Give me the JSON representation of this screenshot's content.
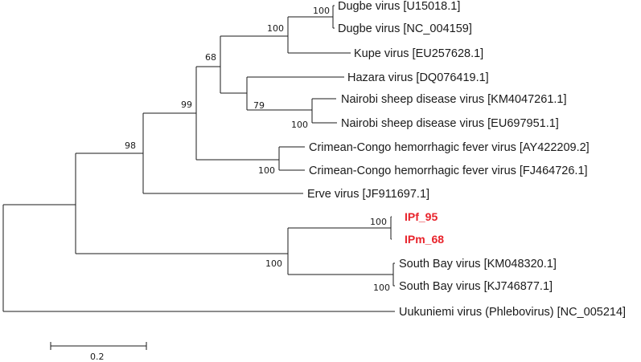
{
  "tree": {
    "taxa": [
      {
        "id": "dugbe1",
        "label": "Dugbe virus [U15018.1]",
        "highlight": false
      },
      {
        "id": "dugbe2",
        "label": "Dugbe virus [NC_004159]",
        "highlight": false
      },
      {
        "id": "kupe",
        "label": "Kupe virus [EU257628.1]",
        "highlight": false
      },
      {
        "id": "hazara",
        "label": "Hazara virus [DQ076419.1]",
        "highlight": false
      },
      {
        "id": "nairobi1",
        "label": "Nairobi sheep disease virus  [KM4047261.1]",
        "highlight": false
      },
      {
        "id": "nairobi2",
        "label": "Nairobi sheep disease virus  [EU697951.1]",
        "highlight": false
      },
      {
        "id": "cchf1",
        "label": "Crimean-Congo hemorrhagic fever virus [AY422209.2]",
        "highlight": false
      },
      {
        "id": "cchf2",
        "label": "Crimean-Congo hemorrhagic fever virus [FJ464726.1]",
        "highlight": false
      },
      {
        "id": "erve",
        "label": "Erve virus [JF911697.1]",
        "highlight": false
      },
      {
        "id": "ipf95",
        "label": "IPf_95",
        "highlight": true
      },
      {
        "id": "ipm68",
        "label": "IPm_68",
        "highlight": true
      },
      {
        "id": "southbay1",
        "label": "South Bay virus [KM048320.1]",
        "highlight": false
      },
      {
        "id": "southbay2",
        "label": "South Bay virus [KJ746877.1]",
        "highlight": false
      },
      {
        "id": "uukuniemi",
        "label": "Uukuniemi virus (Phlebovirus) [NC_005214]",
        "highlight": false
      }
    ],
    "bootstrap": {
      "dugbe": "100",
      "dugbe_kupe": "100",
      "hazara_group": "68",
      "nairobi_hazara": "79",
      "nairobi": "100",
      "nairo_cchf": "99",
      "cchf": "100",
      "erve_group": "98",
      "ip": "100",
      "southbay": "100",
      "ip_southbay": "100"
    },
    "scale_bar": {
      "label": "0.2"
    },
    "colors": {
      "branch": "#1a1a1a",
      "highlight": "#e8222a"
    }
  }
}
